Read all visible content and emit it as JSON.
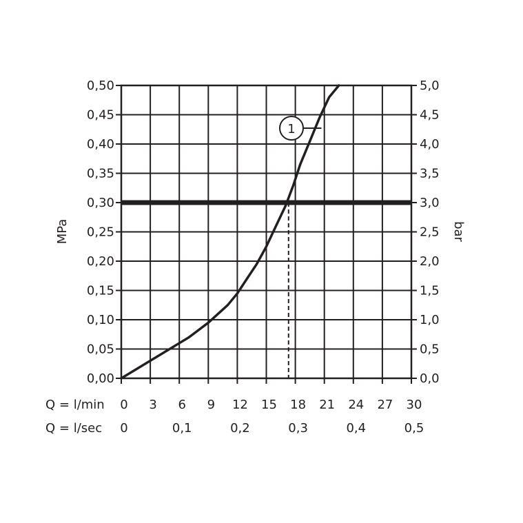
{
  "chart_data": {
    "type": "line",
    "left_axis": {
      "label": "MPa",
      "ylim": [
        0,
        0.5
      ],
      "ticks": [
        "0,00",
        "0,05",
        "0,10",
        "0,15",
        "0,20",
        "0,25",
        "0,30",
        "0,35",
        "0,40",
        "0,45",
        "0,50"
      ]
    },
    "right_axis": {
      "label": "bar",
      "ylim": [
        0,
        5
      ],
      "ticks": [
        "0,0",
        "0,5",
        "1,0",
        "1,5",
        "2,0",
        "2,5",
        "3,0",
        "3,5",
        "4,0",
        "4,5",
        "5,0"
      ]
    },
    "x_axis_lmin": {
      "label": "Q = l/min",
      "xlim": [
        0,
        30
      ],
      "ticks": [
        "0",
        "3",
        "6",
        "9",
        "12",
        "15",
        "18",
        "21",
        "24",
        "27",
        "30"
      ]
    },
    "x_axis_lsec": {
      "label": "Q = l/sec",
      "ticks": [
        {
          "value": 0,
          "text": "0"
        },
        {
          "value": 0.1,
          "text": "0,1"
        },
        {
          "value": 0.2,
          "text": "0,2"
        },
        {
          "value": 0.3,
          "text": "0,3"
        },
        {
          "value": 0.4,
          "text": "0,4"
        },
        {
          "value": 0.5,
          "text": "0,5"
        }
      ]
    },
    "grid": true,
    "series": [
      {
        "callout": "1",
        "x": [
          0,
          3,
          5,
          7,
          9,
          11,
          12,
          13,
          14,
          15,
          16,
          17,
          17.8,
          18.5,
          19.5,
          20.5,
          21.5,
          22.5
        ],
        "y": [
          0,
          0.03,
          0.05,
          0.07,
          0.095,
          0.125,
          0.145,
          0.17,
          0.195,
          0.225,
          0.26,
          0.295,
          0.33,
          0.365,
          0.405,
          0.445,
          0.48,
          0.5
        ]
      }
    ],
    "reference_line": {
      "y": 0.3
    },
    "marker": {
      "x": 17.3,
      "y": 0.3,
      "style": "dashed"
    },
    "colors": {
      "line": "#231f20",
      "grid": "#231f20",
      "background": "#ffffff"
    }
  }
}
